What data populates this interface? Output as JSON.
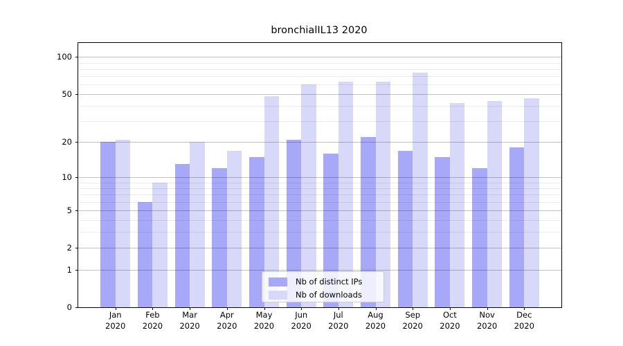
{
  "title": "bronchialIL13 2020",
  "chart_data": {
    "type": "bar",
    "title": "bronchialIL13 2020",
    "categories": [
      "Jan 2020",
      "Feb 2020",
      "Mar 2020",
      "Apr 2020",
      "May 2020",
      "Jun 2020",
      "Jul 2020",
      "Aug 2020",
      "Sep 2020",
      "Oct 2020",
      "Nov 2020",
      "Dec 2020"
    ],
    "month_labels": [
      "Jan",
      "Feb",
      "Mar",
      "Apr",
      "May",
      "Jun",
      "Jul",
      "Aug",
      "Sep",
      "Oct",
      "Nov",
      "Dec"
    ],
    "year_label": "2020",
    "series": [
      {
        "name": "Nb of distinct IPs",
        "color": "#a8a8f8",
        "values": [
          20,
          6,
          13,
          12,
          15,
          21,
          16,
          22,
          17,
          15,
          12,
          18
        ]
      },
      {
        "name": "Nb of downloads",
        "color": "#d8d8f8",
        "values": [
          21,
          9,
          20,
          17,
          48,
          60,
          63,
          63,
          75,
          42,
          44,
          46
        ]
      }
    ],
    "y_scale": "log1p",
    "ylim": [
      0,
      130
    ],
    "y_ticks": [
      0,
      1,
      2,
      5,
      10,
      20,
      50,
      100
    ],
    "y_minor_ticks": [
      3,
      4,
      6,
      7,
      8,
      9,
      30,
      40,
      60,
      70,
      80,
      90
    ],
    "grid": true,
    "legend_position": "lower center",
    "colors": {
      "axis": "#000000",
      "grid_major": "#c2c2c2",
      "grid_minor": "#ebebeb",
      "background": "#ffffff"
    }
  }
}
